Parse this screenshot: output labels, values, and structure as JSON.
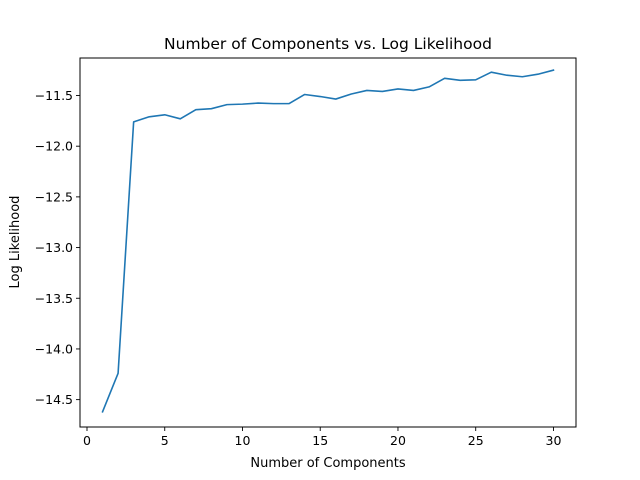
{
  "chart_data": {
    "type": "line",
    "title": "Number of Components vs. Log Likelihood",
    "xlabel": "Number of Components",
    "ylabel": "Log Likelihood",
    "xlim": [
      -0.45,
      31.45
    ],
    "ylim": [
      -14.77,
      -11.13
    ],
    "xticks": [
      0,
      5,
      10,
      15,
      20,
      25,
      30
    ],
    "yticks": [
      -14.5,
      -14.0,
      -13.5,
      -13.0,
      -12.5,
      -12.0,
      -11.5
    ],
    "ytick_labels": [
      "−14.5",
      "−14.0",
      "−13.5",
      "−13.0",
      "−12.5",
      "−12.0",
      "−11.5"
    ],
    "grid": false,
    "color": "#1f77b4",
    "series": [
      {
        "x": [
          1,
          2,
          3,
          4,
          5,
          6,
          7,
          8,
          9,
          10,
          11,
          12,
          13,
          14,
          15,
          16,
          17,
          18,
          19,
          20,
          21,
          22,
          23,
          24,
          25,
          26,
          27,
          28,
          29,
          30
        ],
        "y": [
          -14.62,
          -14.24,
          -11.76,
          -11.71,
          -11.69,
          -11.73,
          -11.64,
          -11.63,
          -11.59,
          -11.585,
          -11.575,
          -11.58,
          -11.58,
          -11.49,
          -11.51,
          -11.535,
          -11.485,
          -11.45,
          -11.46,
          -11.435,
          -11.45,
          -11.415,
          -11.33,
          -11.35,
          -11.345,
          -11.27,
          -11.3,
          -11.315,
          -11.29,
          -11.25
        ]
      }
    ]
  }
}
